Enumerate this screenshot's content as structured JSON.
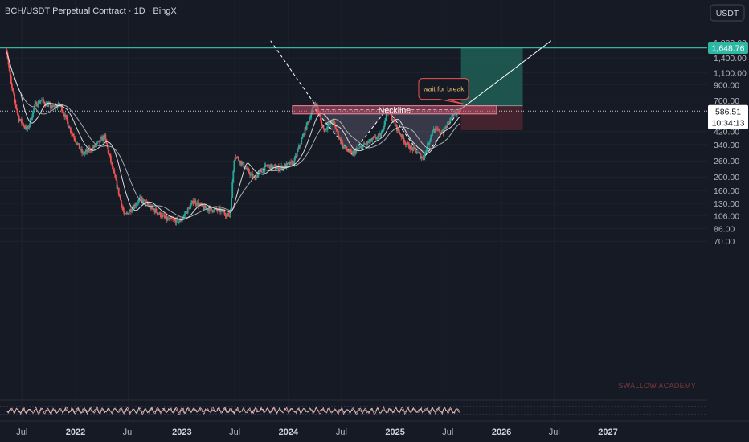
{
  "header": {
    "title": "BCH/USDT Perpetual Contract · 1D · BingX",
    "currency_button": "USDT"
  },
  "watermark": "SWALLOW ACADEMY",
  "price_badges": {
    "target": "1,648.76",
    "current": "586.51",
    "countdown": "10:34:13"
  },
  "annotations": {
    "callout": "wait for break",
    "neckline": "Neckline"
  },
  "colors": {
    "background": "#161a25",
    "bull": "#26a69a",
    "bear": "#ef5350",
    "target_zone": "#1e5f55",
    "stop_zone": "#4a2530",
    "neckline_band": "#c2506a",
    "target_line": "#2eb8a3"
  },
  "chart_data": {
    "type": "candlestick",
    "symbol": "BCH/USDT",
    "interval": "1D",
    "y_scale": "log",
    "y_ticks": [
      "1,800.00",
      "1,400.00",
      "1,100.00",
      "900.00",
      "700.00",
      "420.00",
      "340.00",
      "260.00",
      "200.00",
      "160.00",
      "130.00",
      "106.00",
      "86.00",
      "70.00"
    ],
    "y_tick_values": [
      1800,
      1400,
      1100,
      900,
      700,
      420,
      340,
      260,
      200,
      160,
      130,
      106,
      86,
      70
    ],
    "x_ticks": [
      "Jul",
      "2022",
      "Jul",
      "2023",
      "Jul",
      "2024",
      "Jul",
      "2025",
      "Jul",
      "2026",
      "Jul",
      "2027"
    ],
    "x_tick_dates": [
      "2021-07-01",
      "2022-01-01",
      "2022-07-01",
      "2023-01-01",
      "2023-07-01",
      "2024-01-01",
      "2024-07-01",
      "2025-01-01",
      "2025-07-01",
      "2026-01-01",
      "2026-07-01",
      "2027-01-01"
    ],
    "price_path": [
      [
        "2021-05-10",
        1600
      ],
      [
        "2021-05-25",
        900
      ],
      [
        "2021-06-20",
        520
      ],
      [
        "2021-07-20",
        430
      ],
      [
        "2021-08-15",
        650
      ],
      [
        "2021-09-05",
        700
      ],
      [
        "2021-10-10",
        620
      ],
      [
        "2021-11-10",
        650
      ],
      [
        "2021-12-15",
        430
      ],
      [
        "2022-01-25",
        290
      ],
      [
        "2022-03-10",
        330
      ],
      [
        "2022-04-10",
        390
      ],
      [
        "2022-05-15",
        200
      ],
      [
        "2022-06-18",
        105
      ],
      [
        "2022-08-10",
        140
      ],
      [
        "2022-09-20",
        120
      ],
      [
        "2022-11-09",
        100
      ],
      [
        "2022-12-25",
        97
      ],
      [
        "2023-02-10",
        135
      ],
      [
        "2023-03-20",
        120
      ],
      [
        "2023-05-15",
        115
      ],
      [
        "2023-06-15",
        105
      ],
      [
        "2023-06-30",
        290
      ],
      [
        "2023-07-25",
        250
      ],
      [
        "2023-09-05",
        195
      ],
      [
        "2023-10-20",
        240
      ],
      [
        "2023-12-01",
        230
      ],
      [
        "2024-01-20",
        255
      ],
      [
        "2024-03-01",
        450
      ],
      [
        "2024-04-02",
        680
      ],
      [
        "2024-05-01",
        430
      ],
      [
        "2024-06-01",
        500
      ],
      [
        "2024-07-05",
        330
      ],
      [
        "2024-08-05",
        290
      ],
      [
        "2024-09-20",
        340
      ],
      [
        "2024-11-15",
        400
      ],
      [
        "2024-12-05",
        610
      ],
      [
        "2025-01-05",
        450
      ],
      [
        "2025-02-10",
        340
      ],
      [
        "2025-03-15",
        300
      ],
      [
        "2025-04-07",
        270
      ],
      [
        "2025-05-10",
        430
      ],
      [
        "2025-06-15",
        420
      ],
      [
        "2025-07-15",
        540
      ],
      [
        "2025-08-12",
        586.51
      ]
    ],
    "levels": {
      "target": 1648.76,
      "current": 586.51,
      "neckline_low": 560,
      "neckline_high": 640,
      "stop": 430,
      "entry": 640
    },
    "zones": {
      "target_zone": {
        "from_date": "2025-08-15",
        "to_date": "2026-03-15",
        "low": 640,
        "high": 1648.76
      },
      "stop_zone": {
        "from_date": "2025-08-15",
        "to_date": "2026-03-15",
        "low": 430,
        "high": 640
      }
    },
    "moving_averages": [
      {
        "period": 50
      },
      {
        "period": 100
      }
    ],
    "trendlines": [
      {
        "style": "dashed",
        "from": [
          "2023-11-01",
          1850
        ],
        "to": [
          "2024-04-02",
          650
        ]
      },
      {
        "style": "solid",
        "from": [
          "2025-08-12",
          600
        ],
        "to": [
          "2026-06-20",
          1850
        ]
      }
    ],
    "pattern": {
      "type": "inverse head and shoulders",
      "points": [
        [
          "2024-04-02",
          600
        ],
        [
          "2024-08-05",
          290
        ],
        [
          "2024-12-05",
          610
        ],
        [
          "2025-04-07",
          270
        ],
        [
          "2025-08-12",
          600
        ]
      ]
    }
  }
}
